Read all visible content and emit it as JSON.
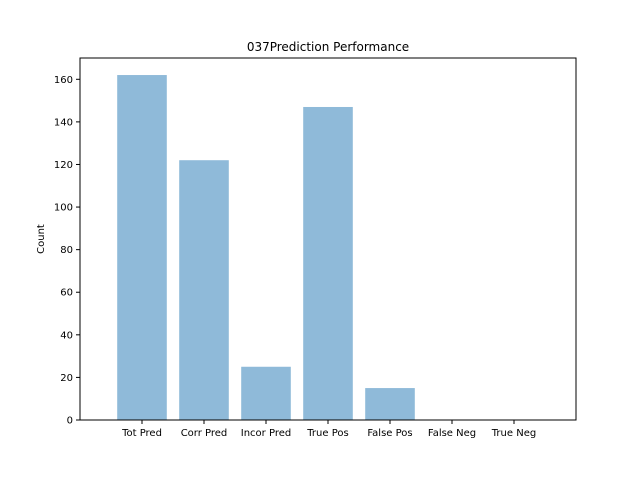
{
  "chart_data": {
    "type": "bar",
    "title": "037Prediction Performance",
    "xlabel": "",
    "ylabel": "Count",
    "categories": [
      "Tot Pred",
      "Corr Pred",
      "Incor Pred",
      "True Pos",
      "False Pos",
      "False Neg",
      "True Neg"
    ],
    "values": [
      162,
      122,
      25,
      147,
      15,
      0,
      0
    ],
    "ylim": [
      0,
      170
    ],
    "yticks": [
      "0",
      "20",
      "40",
      "60",
      "80",
      "100",
      "120",
      "140",
      "160"
    ],
    "grid": false,
    "bar_color": "#8fbad9"
  }
}
